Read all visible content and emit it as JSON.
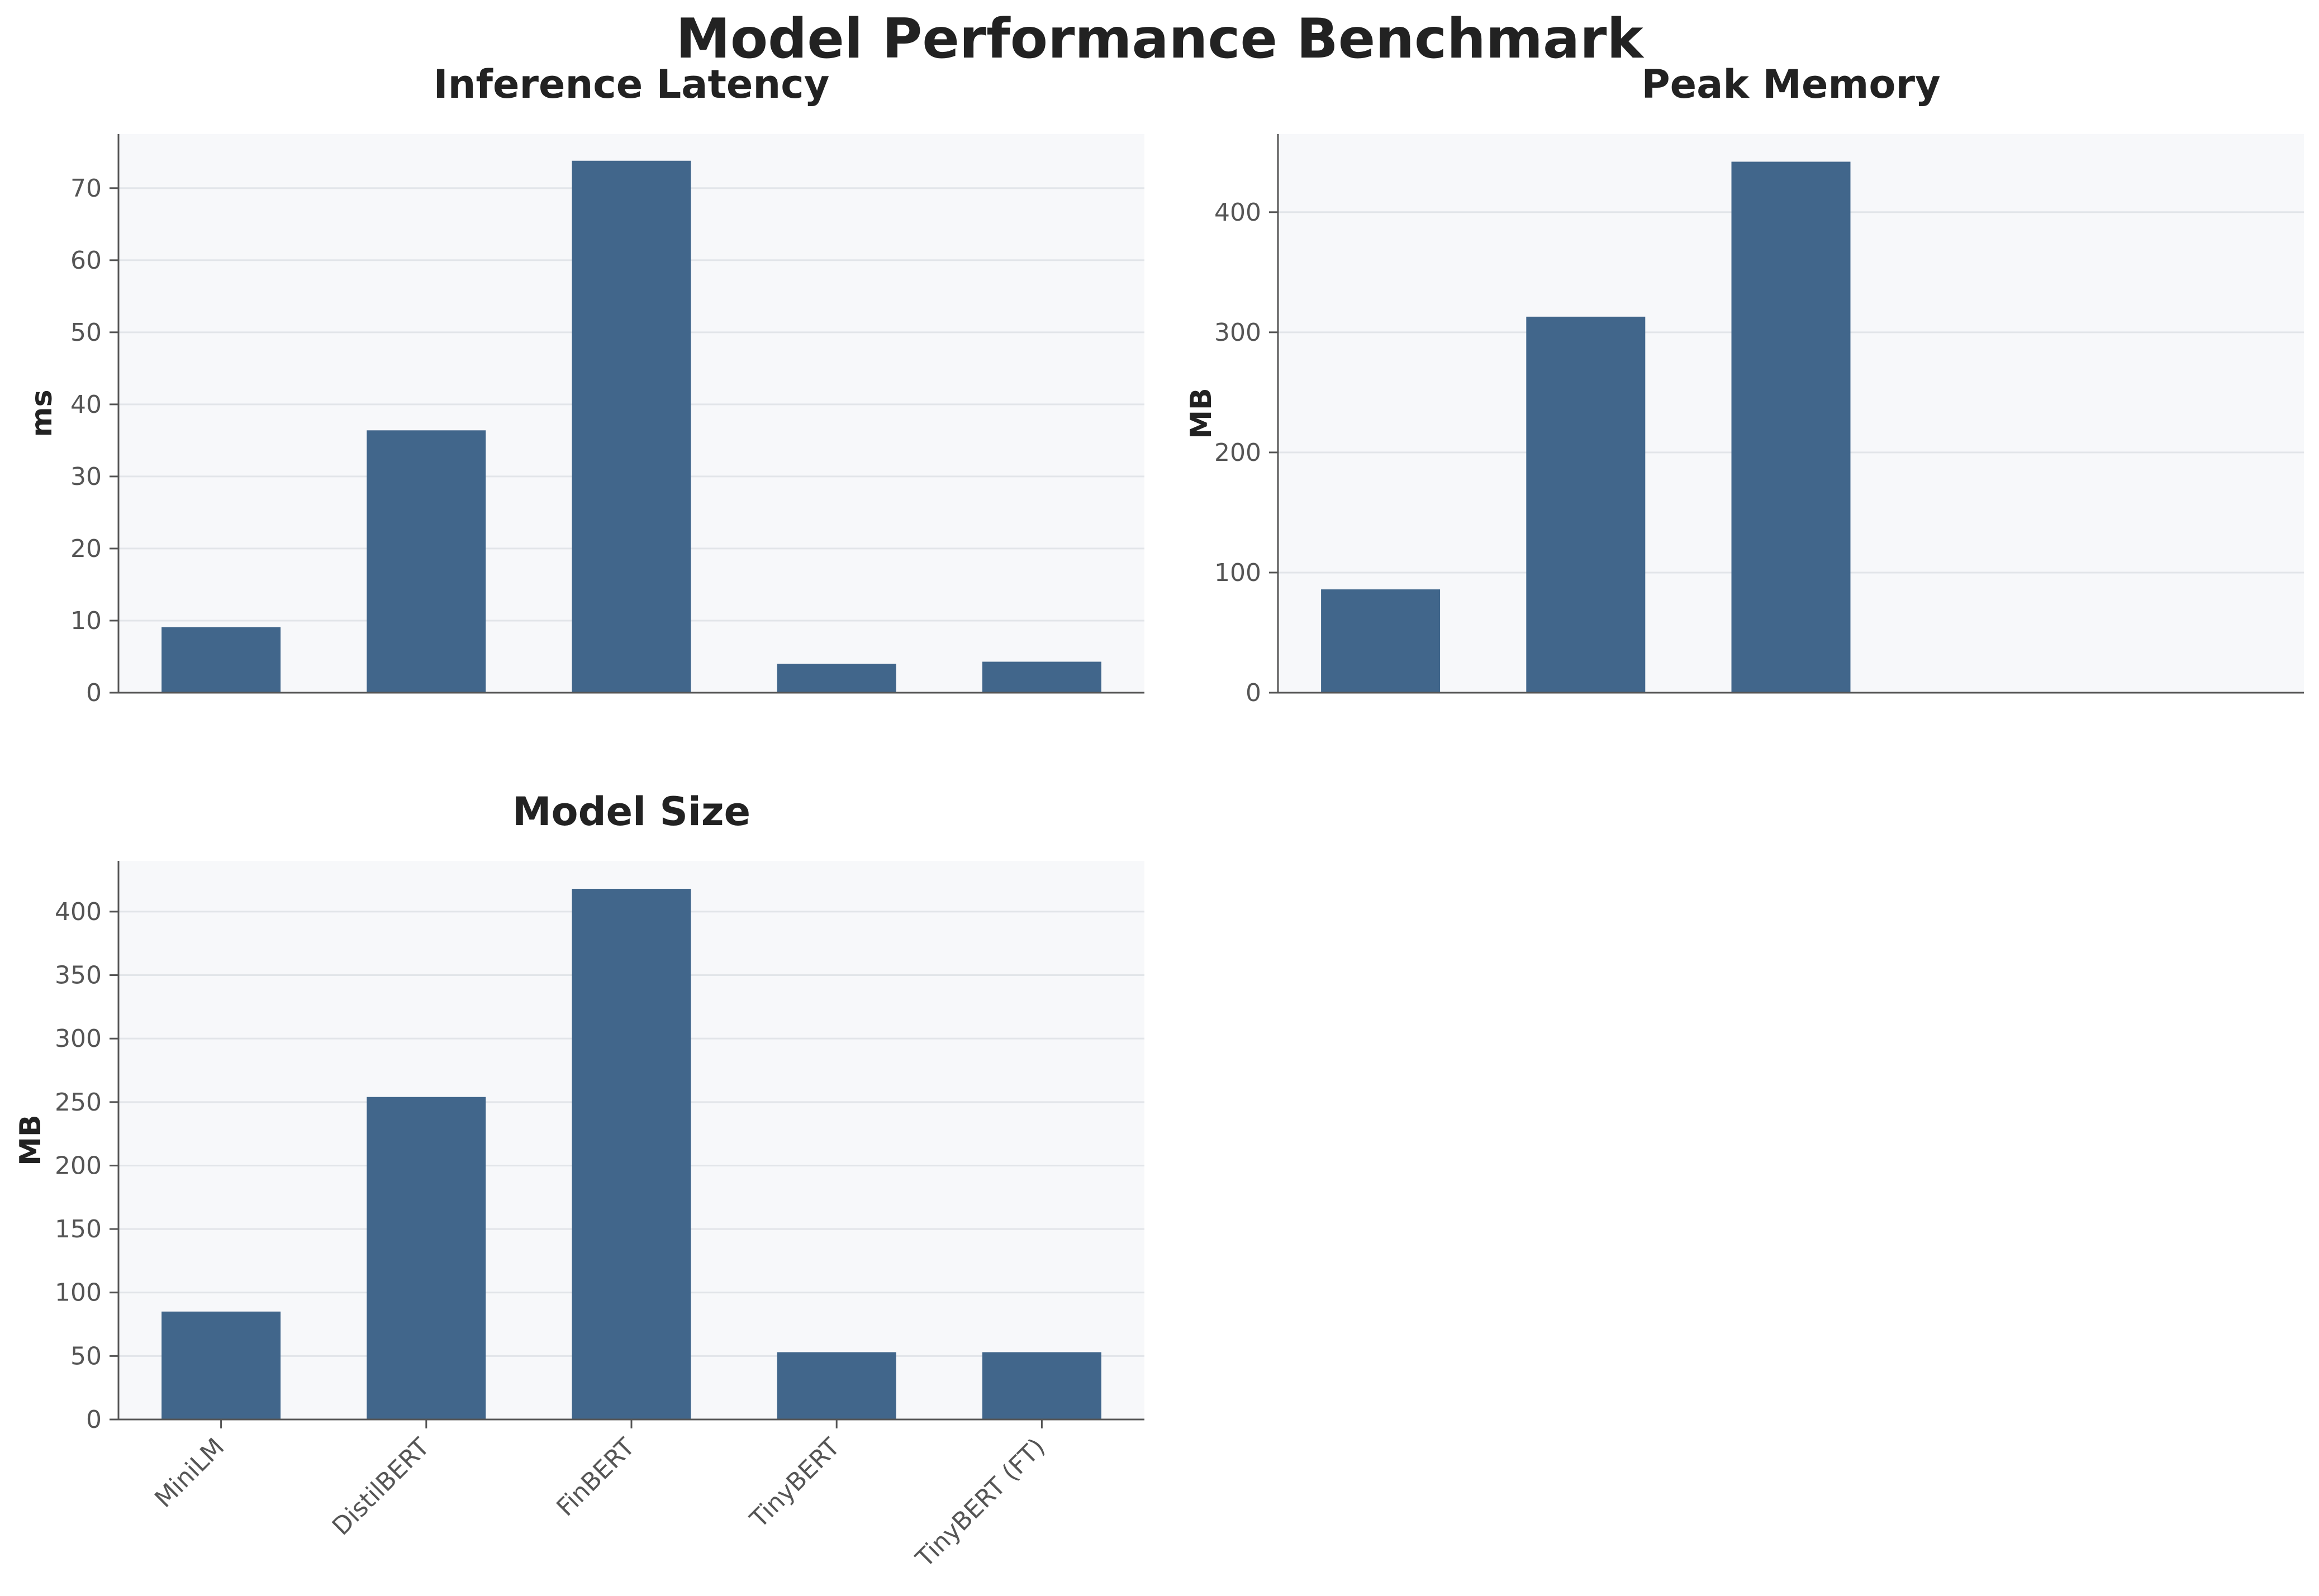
{
  "title": "Model Performance Benchmark",
  "colors": {
    "bar": "#41668b",
    "plot_bg": "#f7f8fa",
    "grid": "#e2e5e9",
    "axis": "#555555",
    "text": "#222222"
  },
  "chart_data": [
    {
      "type": "bar",
      "title": "Inference Latency",
      "ylabel": "ms",
      "categories": [
        "MiniLM",
        "DistilBERT",
        "FinBERT",
        "TinyBERT",
        "TinyBERT (FT)"
      ],
      "values": [
        9.1,
        36.4,
        73.8,
        4.0,
        4.3
      ],
      "ylim": [
        0,
        77.5
      ],
      "yticks": [
        0,
        10,
        20,
        30,
        40,
        50,
        60,
        70
      ],
      "show_xticklabels": false,
      "grid": true
    },
    {
      "type": "bar",
      "title": "Peak Memory",
      "ylabel": "MB",
      "categories": [
        "MiniLM",
        "DistilBERT",
        "FinBERT",
        "TinyBERT",
        "TinyBERT (FT)"
      ],
      "values": [
        86,
        313,
        442,
        0,
        0
      ],
      "ylim": [
        0,
        465
      ],
      "yticks": [
        0,
        100,
        200,
        300,
        400
      ],
      "show_xticklabels": false,
      "grid": true
    },
    {
      "type": "bar",
      "title": "Model Size",
      "ylabel": "MB",
      "categories": [
        "MiniLM",
        "DistilBERT",
        "FinBERT",
        "TinyBERT",
        "TinyBERT (FT)"
      ],
      "values": [
        85,
        254,
        418,
        53,
        53
      ],
      "ylim": [
        0,
        440
      ],
      "yticks": [
        0,
        50,
        100,
        150,
        200,
        250,
        300,
        350,
        400
      ],
      "show_xticklabels": true,
      "grid": true
    }
  ]
}
